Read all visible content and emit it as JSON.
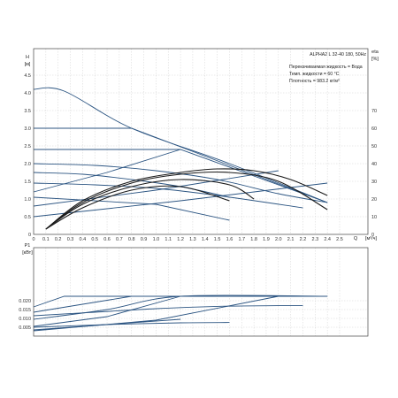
{
  "colors": {
    "curve": "#2c5582",
    "eff": "#1a1a1a",
    "axis": "#444444",
    "grid": "#c8c8c8",
    "text": "#222222"
  },
  "chart_data": [
    {
      "type": "line",
      "title": "ALPHA2 L 32-40 180, 50Hz",
      "info": [
        "Перекачиваемая жидкость = Вода",
        "Темп. жидкости = 60 °C",
        "Плотность = 983.2 кг/м³"
      ],
      "ylabel": "H",
      "yunit": "[м]",
      "y2label": "eta",
      "y2unit": "[%]",
      "xlabel": "Q",
      "xunit": "[м³/ч]",
      "xlim": [
        0,
        2.6
      ],
      "ylim": [
        0,
        5.0
      ],
      "y2lim": [
        0,
        80
      ],
      "xticks": [
        "0",
        "0.1",
        "0.2",
        "0.3",
        "0.4",
        "0.5",
        "0.6",
        "0.7",
        "0.8",
        "0.9",
        "1.0",
        "1.1",
        "1.2",
        "1.3",
        "1.4",
        "1.5",
        "1.6",
        "1.7",
        "1.8",
        "1.9",
        "2.0",
        "2.1",
        "2.2",
        "2.3",
        "2.4",
        "2.5"
      ],
      "yticks": [
        "0",
        "0.5",
        "1.0",
        "1.5",
        "2.0",
        "2.5",
        "3.0",
        "3.5",
        "4.0",
        "4.5"
      ],
      "y2ticks": [
        "0",
        "10",
        "20",
        "30",
        "40",
        "50",
        "60",
        "70"
      ],
      "series": [
        {
          "kind": "pump",
          "x": [
            0,
            0.25,
            0.8,
            1.6,
            2.4
          ],
          "y": [
            4.1,
            4.05,
            3.0,
            2.0,
            0.9
          ]
        },
        {
          "kind": "pump",
          "x": [
            0,
            0.8,
            2.4
          ],
          "y": [
            3.0,
            3.0,
            0.9
          ]
        },
        {
          "kind": "pump",
          "x": [
            0,
            1.2,
            2.4
          ],
          "y": [
            2.4,
            2.4,
            0.9
          ]
        },
        {
          "kind": "pump",
          "x": [
            0,
            0.5,
            1.0,
            1.5,
            2.0,
            2.4
          ],
          "y": [
            2.0,
            1.95,
            1.8,
            1.55,
            1.15,
            0.9
          ]
        },
        {
          "kind": "pump",
          "x": [
            0,
            1.0,
            1.6
          ],
          "y": [
            1.05,
            0.85,
            0.4
          ]
        },
        {
          "kind": "system",
          "x": [
            0,
            0.6,
            1.2
          ],
          "y": [
            1.2,
            1.75,
            2.4
          ]
        },
        {
          "kind": "system",
          "x": [
            0,
            1.0,
            2.0
          ],
          "y": [
            0.8,
            1.25,
            1.8
          ]
        },
        {
          "kind": "system",
          "x": [
            0,
            1.2,
            2.4
          ],
          "y": [
            0.5,
            0.95,
            1.45
          ]
        },
        {
          "kind": "branch",
          "x": [
            0,
            0.4,
            0.8,
            1.2,
            1.6
          ],
          "y": [
            1.75,
            1.7,
            1.55,
            1.35,
            1.05
          ]
        },
        {
          "kind": "branch",
          "x": [
            0,
            0.5,
            1.0,
            1.5,
            2.2
          ],
          "y": [
            1.45,
            1.4,
            1.3,
            1.1,
            0.75
          ]
        },
        {
          "kind": "efficiency",
          "x": [
            0.1,
            0.4,
            0.8,
            1.2,
            1.5,
            1.8,
            2.1,
            2.4
          ],
          "y": [
            3,
            19,
            30,
            35,
            37,
            36,
            31,
            22
          ]
        },
        {
          "kind": "efficiency",
          "x": [
            0.1,
            0.4,
            0.8,
            1.2,
            1.6,
            2.0,
            2.4
          ],
          "y": [
            3,
            18,
            29,
            34,
            35,
            30,
            14
          ]
        },
        {
          "kind": "efficiency",
          "x": [
            0.1,
            0.4,
            0.8,
            1.2,
            1.6,
            1.8
          ],
          "y": [
            3,
            17,
            27,
            31,
            28,
            20
          ]
        },
        {
          "kind": "efficiency",
          "x": [
            0.1,
            0.4,
            0.8,
            1.2,
            1.6
          ],
          "y": [
            3,
            15,
            25,
            27,
            19
          ]
        }
      ]
    },
    {
      "type": "line",
      "ylabel": "P1",
      "yunit": "[кВт]",
      "xlim": [
        0,
        2.6
      ],
      "ylim": [
        0,
        0.025
      ],
      "yticks": [
        "0.005",
        "0.010",
        "0.015",
        "0.020"
      ],
      "series": [
        {
          "kind": "power",
          "x": [
            0,
            0.25,
            2.4
          ],
          "y": [
            0.0165,
            0.0225,
            0.0225
          ]
        },
        {
          "kind": "power",
          "x": [
            0,
            0.4,
            0.8
          ],
          "y": [
            0.0135,
            0.018,
            0.0225
          ]
        },
        {
          "kind": "power",
          "x": [
            0,
            0.6,
            1.2,
            2.4
          ],
          "y": [
            0.0095,
            0.015,
            0.0225,
            0.0225
          ]
        },
        {
          "kind": "power",
          "x": [
            0,
            0.6,
            1.2
          ],
          "y": [
            0.0055,
            0.011,
            0.0225
          ]
        },
        {
          "kind": "power",
          "x": [
            0,
            1.0,
            2.0
          ],
          "y": [
            0.003,
            0.009,
            0.0225
          ]
        },
        {
          "kind": "power",
          "x": [
            0,
            0.5,
            1.0,
            1.5,
            2.0,
            2.2
          ],
          "y": [
            0.0115,
            0.0135,
            0.0155,
            0.0168,
            0.0172,
            0.0172
          ]
        },
        {
          "kind": "power",
          "x": [
            0,
            0.6,
            1.2,
            1.6
          ],
          "y": [
            0.005,
            0.0065,
            0.0075,
            0.0077
          ]
        },
        {
          "kind": "power",
          "x": [
            0,
            1.2
          ],
          "y": [
            0.0035,
            0.0095
          ]
        }
      ]
    }
  ]
}
